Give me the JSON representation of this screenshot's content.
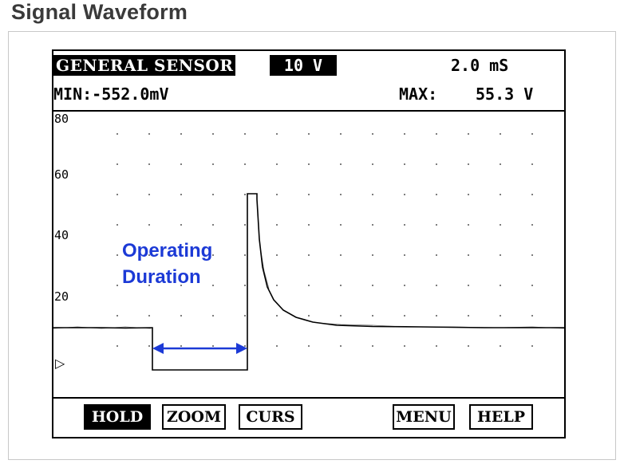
{
  "page": {
    "title": "Signal Waveform"
  },
  "header": {
    "sensor": "GENERAL SENSOR",
    "volts_div": "10 V",
    "time_div": "2.0 mS"
  },
  "readout": {
    "min": "MIN:-552.0mV",
    "max_label": "MAX:",
    "max_value": "55.3 V"
  },
  "plot": {
    "y_ticks": [
      "80",
      "60",
      "40",
      "20"
    ],
    "annotation_line1": "Operating",
    "annotation_line2": "Duration",
    "annotation_color": "#1c3ad6",
    "marker": "▷"
  },
  "toolbar": {
    "buttons": [
      {
        "label": "HOLD",
        "active": true
      },
      {
        "label": "ZOOM",
        "active": false
      },
      {
        "label": "CURS",
        "active": false
      },
      {
        "label": "MENU",
        "active": false
      },
      {
        "label": "HELP",
        "active": false
      }
    ]
  }
}
